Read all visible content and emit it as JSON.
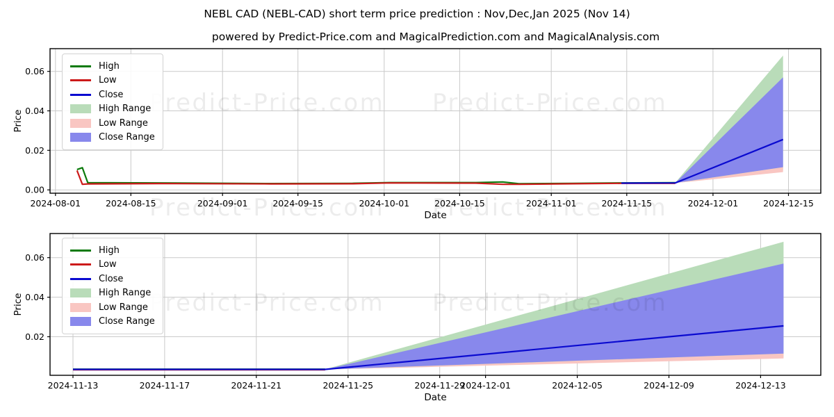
{
  "figure": {
    "title": "NEBL CAD (NEBL-CAD) short term price prediction : Nov,Dec,Jan 2025 (Nov 14)",
    "subtitle": "powered by Predict-Price.com and MagicalPrediction.com and MagicalAnalysis.com"
  },
  "watermark": {
    "text": "Predict-Price.com"
  },
  "colors": {
    "high": "#0b7a0b",
    "low": "#cc1a1a",
    "close": "#0a0ad0",
    "high_range": "#b9dcb9",
    "low_range": "#f9c6c2",
    "close_range": "#8888ec",
    "grid": "#c9c9c9",
    "spine": "#000000"
  },
  "chart_data": [
    {
      "type": "line",
      "xlabel": "Date",
      "ylabel": "Price",
      "x_range": [
        "2024-07-31",
        "2024-12-21"
      ],
      "y_range": [
        -0.0017,
        0.0715
      ],
      "yticks": [
        {
          "v": 0.0,
          "label": "0.00"
        },
        {
          "v": 0.02,
          "label": "0.02"
        },
        {
          "v": 0.04,
          "label": "0.04"
        },
        {
          "v": 0.06,
          "label": "0.06"
        }
      ],
      "xticks": [
        "2024-08-01",
        "2024-08-15",
        "2024-09-01",
        "2024-09-15",
        "2024-10-01",
        "2024-10-15",
        "2024-11-01",
        "2024-11-15",
        "2024-12-01",
        "2024-12-15"
      ],
      "legend": [
        {
          "label": "High",
          "swatch": "line",
          "color_key": "high"
        },
        {
          "label": "Low",
          "swatch": "line",
          "color_key": "low"
        },
        {
          "label": "Close",
          "swatch": "line",
          "color_key": "close"
        },
        {
          "label": "High Range",
          "swatch": "patch",
          "color_key": "high_range"
        },
        {
          "label": "Low Range",
          "swatch": "patch",
          "color_key": "low_range"
        },
        {
          "label": "Close Range",
          "swatch": "patch",
          "color_key": "close_range"
        }
      ],
      "bands": [
        {
          "name": "high-range",
          "color_key": "high_range",
          "upper": [
            [
              "2024-11-24",
              0.0036
            ],
            [
              "2024-12-14",
              0.068
            ]
          ],
          "lower": [
            [
              "2024-11-24",
              0.0036
            ],
            [
              "2024-12-14",
              0.01
            ]
          ]
        },
        {
          "name": "low-range",
          "color_key": "low_range",
          "upper": [
            [
              "2024-11-24",
              0.0034
            ],
            [
              "2024-12-14",
              0.0115
            ]
          ],
          "lower": [
            [
              "2024-11-24",
              0.0034
            ],
            [
              "2024-12-14",
              0.009
            ]
          ]
        },
        {
          "name": "close-range",
          "color_key": "close_range",
          "upper": [
            [
              "2024-11-24",
              0.0035
            ],
            [
              "2024-12-14",
              0.057
            ]
          ],
          "lower": [
            [
              "2024-11-24",
              0.0035
            ],
            [
              "2024-12-14",
              0.0115
            ]
          ]
        }
      ],
      "lines": [
        {
          "name": "high",
          "color_key": "high",
          "points": [
            [
              "2024-08-05",
              0.0103
            ],
            [
              "2024-08-06",
              0.0112
            ],
            [
              "2024-08-07",
              0.0036
            ],
            [
              "2024-08-20",
              0.0035
            ],
            [
              "2024-09-10",
              0.0032
            ],
            [
              "2024-09-25",
              0.0033
            ],
            [
              "2024-10-02",
              0.0037
            ],
            [
              "2024-10-18",
              0.0037
            ],
            [
              "2024-10-23",
              0.004
            ],
            [
              "2024-10-26",
              0.0031
            ],
            [
              "2024-11-05",
              0.0033
            ],
            [
              "2024-11-14",
              0.0035
            ],
            [
              "2024-11-24",
              0.0036
            ]
          ]
        },
        {
          "name": "low",
          "color_key": "low",
          "points": [
            [
              "2024-08-05",
              0.0098
            ],
            [
              "2024-08-06",
              0.0028
            ],
            [
              "2024-08-07",
              0.003
            ],
            [
              "2024-08-20",
              0.0032
            ],
            [
              "2024-09-10",
              0.003
            ],
            [
              "2024-09-25",
              0.0031
            ],
            [
              "2024-10-02",
              0.0035
            ],
            [
              "2024-10-18",
              0.0034
            ],
            [
              "2024-10-23",
              0.0028
            ],
            [
              "2024-10-26",
              0.0028
            ],
            [
              "2024-11-05",
              0.0031
            ],
            [
              "2024-11-14",
              0.0033
            ],
            [
              "2024-11-24",
              0.0033
            ]
          ]
        },
        {
          "name": "close",
          "color_key": "close",
          "points": [
            [
              "2024-11-14",
              0.0034
            ],
            [
              "2024-11-24",
              0.0035
            ],
            [
              "2024-12-14",
              0.0255
            ]
          ]
        }
      ]
    },
    {
      "type": "line",
      "xlabel": "Date",
      "ylabel": "Price",
      "x_range": [
        "2024-11-12",
        "2024-12-15T15:00"
      ],
      "y_range": [
        0.0005,
        0.0722
      ],
      "yticks": [
        {
          "v": 0.02,
          "label": "0.02"
        },
        {
          "v": 0.04,
          "label": "0.04"
        },
        {
          "v": 0.06,
          "label": "0.06"
        }
      ],
      "xticks": [
        "2024-11-13",
        "2024-11-17",
        "2024-11-21",
        "2024-11-25",
        "2024-11-29",
        "2024-12-01",
        "2024-12-05",
        "2024-12-09",
        "2024-12-13"
      ],
      "legend": [
        {
          "label": "High",
          "swatch": "line",
          "color_key": "high"
        },
        {
          "label": "Low",
          "swatch": "line",
          "color_key": "low"
        },
        {
          "label": "Close",
          "swatch": "line",
          "color_key": "close"
        },
        {
          "label": "High Range",
          "swatch": "patch",
          "color_key": "high_range"
        },
        {
          "label": "Low Range",
          "swatch": "patch",
          "color_key": "low_range"
        },
        {
          "label": "Close Range",
          "swatch": "patch",
          "color_key": "close_range"
        }
      ],
      "bands": [
        {
          "name": "high-range",
          "color_key": "high_range",
          "upper": [
            [
              "2024-11-24",
              0.0036
            ],
            [
              "2024-12-14",
              0.068
            ]
          ],
          "lower": [
            [
              "2024-11-24",
              0.0036
            ],
            [
              "2024-12-14",
              0.01
            ]
          ]
        },
        {
          "name": "low-range",
          "color_key": "low_range",
          "upper": [
            [
              "2024-11-24",
              0.0034
            ],
            [
              "2024-12-14",
              0.0115
            ]
          ],
          "lower": [
            [
              "2024-11-24",
              0.0034
            ],
            [
              "2024-12-14",
              0.009
            ]
          ]
        },
        {
          "name": "close-range",
          "color_key": "close_range",
          "upper": [
            [
              "2024-11-24",
              0.0035
            ],
            [
              "2024-12-14",
              0.057
            ]
          ],
          "lower": [
            [
              "2024-11-24",
              0.0035
            ],
            [
              "2024-12-14",
              0.0115
            ]
          ]
        }
      ],
      "lines": [
        {
          "name": "high",
          "color_key": "high",
          "points": [
            [
              "2024-11-13",
              0.0036
            ],
            [
              "2024-11-24",
              0.0036
            ]
          ]
        },
        {
          "name": "low",
          "color_key": "low",
          "points": [
            [
              "2024-11-13",
              0.0033
            ],
            [
              "2024-11-24",
              0.0033
            ]
          ]
        },
        {
          "name": "close",
          "color_key": "close",
          "points": [
            [
              "2024-11-13",
              0.0035
            ],
            [
              "2024-11-24",
              0.0035
            ],
            [
              "2024-12-14",
              0.0255
            ]
          ]
        }
      ]
    }
  ]
}
